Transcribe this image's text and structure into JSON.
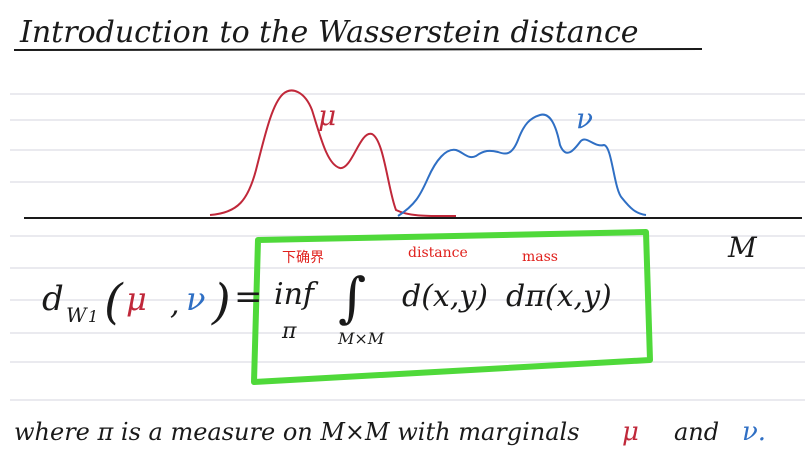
{
  "title": "Introduction to the Wasserstein distance",
  "labels": {
    "mu": "μ",
    "nu": "ν",
    "space_M": "M"
  },
  "formula": {
    "d": "d",
    "subscript": "W",
    "subscript_index": "1",
    "open_paren": "(",
    "mu": "μ",
    "comma": ",",
    "nu": "ν",
    "close_paren": ")",
    "equals": "=",
    "inf": "inf",
    "inf_sub": "π",
    "integral": "∫",
    "integral_sub": "M×M",
    "dist_term": "d(x,y)",
    "measure_term": "dπ(x,y)"
  },
  "annotations": {
    "infimum": "下确界",
    "distance": "distance",
    "mass": "mass"
  },
  "footer": {
    "prefix": "where π is a measure on M×M with marginals",
    "mu": "μ",
    "and": "and",
    "nu": "ν."
  },
  "colors": {
    "ink": "#1a1a1a",
    "mu_red": "#c0283a",
    "nu_blue": "#2f6fc4",
    "highlight_green": "#4fd93a",
    "annotation_red": "#e0201c",
    "ruled_line": "#e4e4ea"
  }
}
